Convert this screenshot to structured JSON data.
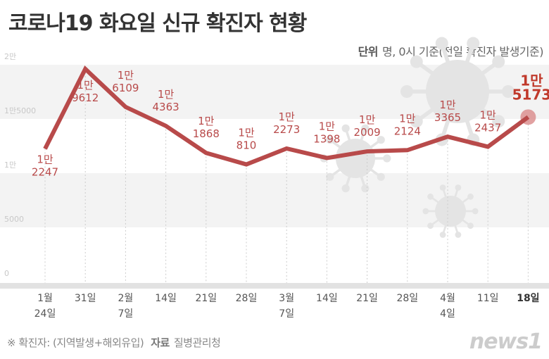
{
  "title": "코로나19 화요일 신규 확진자 현황",
  "unit_label": "단위",
  "unit_text": "명, 0시 기준(전일 확진자 발생기준)",
  "footer_note": "※ 확진자: (지역발생+해외유입)",
  "source_label": "자료",
  "source": "질병관리청",
  "logo": "news1",
  "chart_data": {
    "type": "line",
    "title": "코로나19 화요일 신규 확진자 현황",
    "ylim": [
      0,
      20000
    ],
    "yticks": [
      0,
      5000,
      10000,
      15000,
      20000
    ],
    "ytick_labels": [
      "0",
      "5000",
      "1만",
      "1만5000",
      "2만"
    ],
    "categories": [
      [
        "1월",
        "24일"
      ],
      [
        "31일"
      ],
      [
        "2월",
        "7일"
      ],
      [
        "14일"
      ],
      [
        "21일"
      ],
      [
        "28일"
      ],
      [
        "3월",
        "7일"
      ],
      [
        "14일"
      ],
      [
        "21일"
      ],
      [
        "28일"
      ],
      [
        "4월",
        "4일"
      ],
      [
        "11일"
      ],
      [
        "18일"
      ]
    ],
    "values": [
      12247,
      19612,
      16109,
      14363,
      11868,
      10810,
      12273,
      11398,
      12009,
      12124,
      13365,
      12437,
      15173
    ],
    "labels": [
      [
        "1만",
        "2247"
      ],
      [
        "1만",
        "9612"
      ],
      [
        "1만",
        "6109"
      ],
      [
        "1만",
        "4363"
      ],
      [
        "1만",
        "1868"
      ],
      [
        "1만",
        "810"
      ],
      [
        "1만",
        "2273"
      ],
      [
        "1만",
        "1398"
      ],
      [
        "1만",
        "2009"
      ],
      [
        "1만",
        "2124"
      ],
      [
        "1만",
        "3365"
      ],
      [
        "1만",
        "2437"
      ],
      [
        "1만",
        "5173"
      ]
    ],
    "line_color": "#b84a4a",
    "highlight_color": "#c0392b",
    "grid": "alternating bands"
  }
}
